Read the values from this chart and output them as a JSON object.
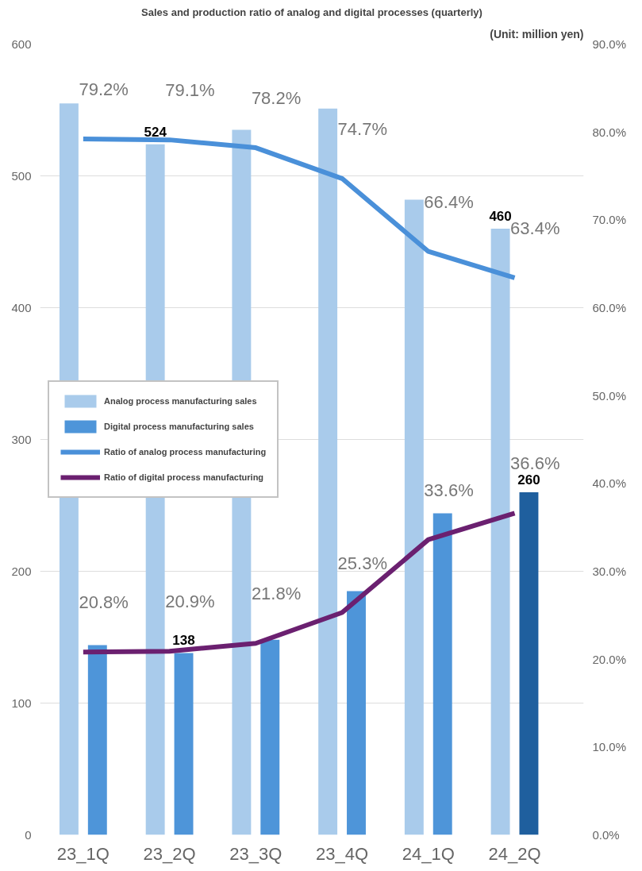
{
  "chart_data": {
    "type": "bar",
    "title": "Sales and production ratio of analog and digital processes (quarterly)",
    "annotations": [
      "(Unit: million yen)"
    ],
    "categories": [
      "23_1Q",
      "23_2Q",
      "23_3Q",
      "23_4Q",
      "24_1Q",
      "24_2Q"
    ],
    "series": [
      {
        "name": "Analog process manufacturing sales",
        "color": "#a9cbeb",
        "values": [
          555,
          524,
          535,
          551,
          482,
          460
        ],
        "value_labels": [
          null,
          "524",
          null,
          null,
          null,
          "460"
        ]
      },
      {
        "name": "Digital process manufacturing sales",
        "colors": [
          "#4e95d9",
          "#4e95d9",
          "#4e95d9",
          "#4e95d9",
          "#4e95d9",
          "#1f5f9e"
        ],
        "values": [
          144,
          138,
          148,
          185,
          244,
          260
        ],
        "value_labels": [
          null,
          "138",
          null,
          null,
          null,
          "260"
        ]
      },
      {
        "name": "Ratio of analog process manufacturing",
        "type": "line",
        "axis": "y2",
        "color": "#4a90d9",
        "values": [
          79.2,
          79.1,
          78.2,
          74.7,
          66.4,
          63.4
        ],
        "value_labels": [
          "79.2%",
          "79.1%",
          "78.2%",
          "74.7%",
          "66.4%",
          "63.4%"
        ]
      },
      {
        "name": "Ratio of digital process manufacturing",
        "type": "line",
        "axis": "y2",
        "color": "#6b2070",
        "values": [
          20.8,
          20.9,
          21.8,
          25.3,
          33.6,
          36.6
        ],
        "value_labels": [
          "20.8%",
          "20.9%",
          "21.8%",
          "25.3%",
          "33.6%",
          "36.6%"
        ]
      }
    ],
    "ylim": [
      0,
      600
    ],
    "yticks": [
      0,
      100,
      200,
      300,
      400,
      500,
      600
    ],
    "y2lim": [
      0,
      90
    ],
    "y2ticks": [
      {
        "value": 0,
        "label": "0.0%"
      },
      {
        "value": 10,
        "label": "10.0%"
      },
      {
        "value": 20,
        "label": "20.0%"
      },
      {
        "value": 30,
        "label": "30.0%"
      },
      {
        "value": 40,
        "label": "40.0%"
      },
      {
        "value": 50,
        "label": "50.0%"
      },
      {
        "value": 60,
        "label": "60.0%"
      },
      {
        "value": 70,
        "label": "70.0%"
      },
      {
        "value": 80,
        "label": "80.0%"
      },
      {
        "value": 90,
        "label": "90.0%"
      }
    ],
    "grid": "y",
    "legend": "left",
    "marker": "none",
    "line_style": "solid"
  }
}
